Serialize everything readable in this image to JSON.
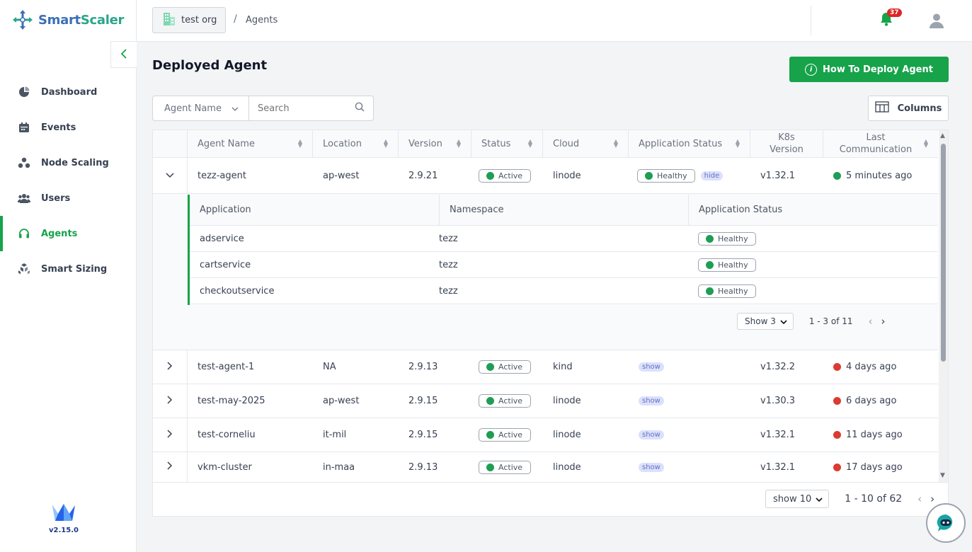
{
  "brand": {
    "name_part1": "Smart",
    "name_part2": "Scaler",
    "version": "v2.15.0"
  },
  "sidebar": {
    "items": [
      {
        "label": "Dashboard",
        "icon": "pie-chart-icon"
      },
      {
        "label": "Events",
        "icon": "calendar-icon"
      },
      {
        "label": "Node Scaling",
        "icon": "nodes-icon"
      },
      {
        "label": "Users",
        "icon": "users-icon"
      },
      {
        "label": "Agents",
        "icon": "headset-icon",
        "active": true
      },
      {
        "label": "Smart Sizing",
        "icon": "cube-stack-icon"
      }
    ]
  },
  "header": {
    "org": "test org",
    "breadcrumb_sep": "/",
    "breadcrumb_page": "Agents",
    "notifications": "37"
  },
  "main": {
    "title": "Deployed Agent",
    "deploy_button": "How To Deploy Agent",
    "filter": {
      "field": "Agent Name",
      "search_placeholder": "Search"
    },
    "columns_button": "Columns"
  },
  "table": {
    "headers": {
      "agent_name": "Agent Name",
      "location": "Location",
      "version": "Version",
      "status": "Status",
      "cloud": "Cloud",
      "app_status": "Application Status",
      "k8s_line1": "K8s",
      "k8s_line2": "Version",
      "last_line1": "Last",
      "last_line2": "Communication"
    },
    "expanded_row": {
      "name": "tezz-agent",
      "location": "ap-west",
      "version": "2.9.21",
      "status": "Active",
      "cloud": "linode",
      "app_status": "Healthy",
      "toggle": "hide",
      "k8s": "v1.32.1",
      "last": "5 minutes ago"
    },
    "sub_table": {
      "headers": {
        "application": "Application",
        "namespace": "Namespace",
        "app_status": "Application Status"
      },
      "rows": [
        {
          "app": "adservice",
          "ns": "tezz",
          "status": "Healthy"
        },
        {
          "app": "cartservice",
          "ns": "tezz",
          "status": "Healthy"
        },
        {
          "app": "checkoutservice",
          "ns": "tezz",
          "status": "Healthy"
        }
      ],
      "pager": {
        "show": "Show 3",
        "range": "1 - 3 of 11"
      }
    },
    "rows": [
      {
        "name": "test-agent-1",
        "location": "NA",
        "version": "2.9.13",
        "status": "Active",
        "cloud": "kind",
        "toggle": "show",
        "k8s": "v1.32.2",
        "last": "4 days ago"
      },
      {
        "name": "test-may-2025",
        "location": "ap-west",
        "version": "2.9.15",
        "status": "Active",
        "cloud": "linode",
        "toggle": "show",
        "k8s": "v1.30.3",
        "last": "6 days ago"
      },
      {
        "name": "test-corneliu",
        "location": "it-mil",
        "version": "2.9.15",
        "status": "Active",
        "cloud": "linode",
        "toggle": "show",
        "k8s": "v1.32.1",
        "last": "11 days ago"
      },
      {
        "name": "vkm-cluster",
        "location": "in-maa",
        "version": "2.9.13",
        "status": "Active",
        "cloud": "linode",
        "toggle": "show",
        "k8s": "v1.32.1",
        "last": "17 days ago"
      }
    ],
    "pager": {
      "show": "show 10",
      "range": "1 - 10 of 62"
    }
  },
  "colors": {
    "accent": "#16a34a",
    "brand_blue": "#3b6fb6",
    "healthy": "#1f9d55",
    "stale": "#dc3b32"
  }
}
